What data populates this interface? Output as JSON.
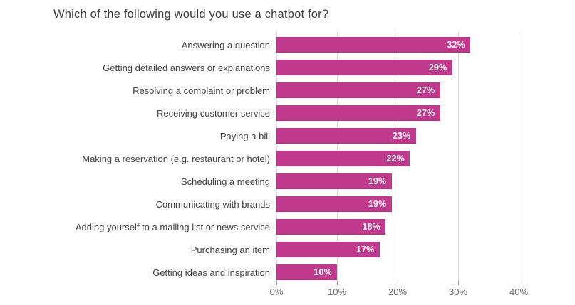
{
  "title": "Which of the following would you use a chatbot for?",
  "colors": {
    "bar": "#C0398C",
    "bar_value_label": "#FFFFFF",
    "title_text": "#3A3A3A",
    "category_label": "#414141",
    "gridline": "#DADADA",
    "axis_tick": "#9B9B9B",
    "axis_tick_label": "#6B6B6B",
    "background": "#FFFFFF"
  },
  "chart_data": {
    "type": "bar",
    "orientation": "horizontal",
    "title": "Which of the following would you use a chatbot for?",
    "categories": [
      "Answering a question",
      "Getting detailed answers or explanations",
      "Resolving a complaint or problem",
      "Receiving customer service",
      "Paying a bill",
      "Making a reservation (e.g. restaurant or hotel)",
      "Scheduling a meeting",
      "Communicating with brands",
      "Adding yourself to a mailing list or news service",
      "Purchasing an item",
      "Getting ideas and inspiration"
    ],
    "values": [
      32,
      29,
      27,
      27,
      23,
      22,
      19,
      19,
      18,
      17,
      10
    ],
    "value_labels": [
      "32%",
      "29%",
      "27%",
      "27%",
      "23%",
      "22%",
      "19%",
      "19%",
      "18%",
      "17%",
      "10%"
    ],
    "xlabel": "",
    "ylabel": "",
    "xlim": [
      0,
      40
    ],
    "x_tick_values": [
      0,
      10,
      20,
      30,
      40
    ],
    "x_tick_labels": [
      "0%",
      "10%",
      "20%",
      "30%",
      "40%"
    ],
    "grid": "vertical",
    "legend": "none",
    "bar_label_position": "inside-end"
  }
}
